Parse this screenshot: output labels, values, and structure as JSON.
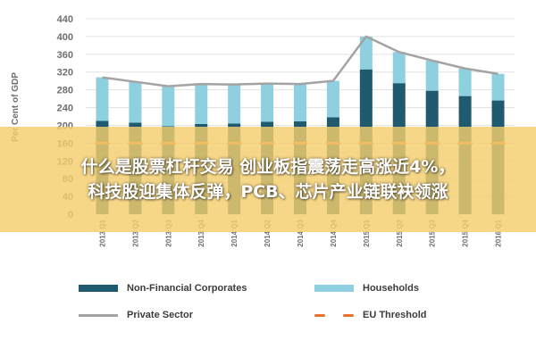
{
  "colors": {
    "nfc": "#1f5a6e",
    "households": "#8ecfe0",
    "private_sector": "#a3a3a3",
    "threshold": "#e8702a",
    "grid": "#e3e3e3",
    "axis_text": "#6e6e6e",
    "banner_bg": "#f4ce6e"
  },
  "chart_data": {
    "type": "bar",
    "stacked": true,
    "ylabel": "Per Cent of GDP",
    "ylim": [
      0,
      440
    ],
    "yticks": [
      0,
      40,
      80,
      120,
      160,
      200,
      240,
      280,
      320,
      360,
      400,
      440
    ],
    "categories": [
      "2013 Q1",
      "2013 Q2",
      "2013 Q3",
      "2013 Q4",
      "2014 Q1",
      "2014 Q2",
      "2014 Q3",
      "2014 Q4",
      "2015 Q1",
      "2015 Q2",
      "2015 Q3",
      "2015 Q4",
      "2016 Q1"
    ],
    "series": [
      {
        "name": "Non-Financial Corporates",
        "type": "bar",
        "values": [
          210,
          206,
          198,
          203,
          204,
          208,
          209,
          218,
          326,
          295,
          278,
          266,
          256
        ]
      },
      {
        "name": "Households",
        "type": "bar",
        "values": [
          98,
          92,
          90,
          90,
          88,
          86,
          84,
          82,
          74,
          70,
          68,
          62,
          60
        ]
      },
      {
        "name": "Private Sector",
        "type": "line",
        "values": [
          308,
          298,
          288,
          293,
          292,
          294,
          293,
          300,
          400,
          365,
          346,
          328,
          316
        ]
      },
      {
        "name": "EU Threshold",
        "type": "dashed-line",
        "values": [
          160,
          160,
          160,
          160,
          160,
          160,
          160,
          160,
          160,
          160,
          160,
          160,
          160
        ]
      }
    ],
    "legend_position": "bottom",
    "grid": true
  },
  "legend": {
    "nfc_label": "Non-Financial Corporates",
    "households_label": "Households",
    "private_label": "Private Sector",
    "threshold_label": "EU Threshold"
  },
  "banner": {
    "line1": "什么是股票杠杆交易 创业板指震荡走高涨近4%，",
    "line2": "科技股迎集体反弹，PCB、芯片产业链联袂领涨"
  }
}
